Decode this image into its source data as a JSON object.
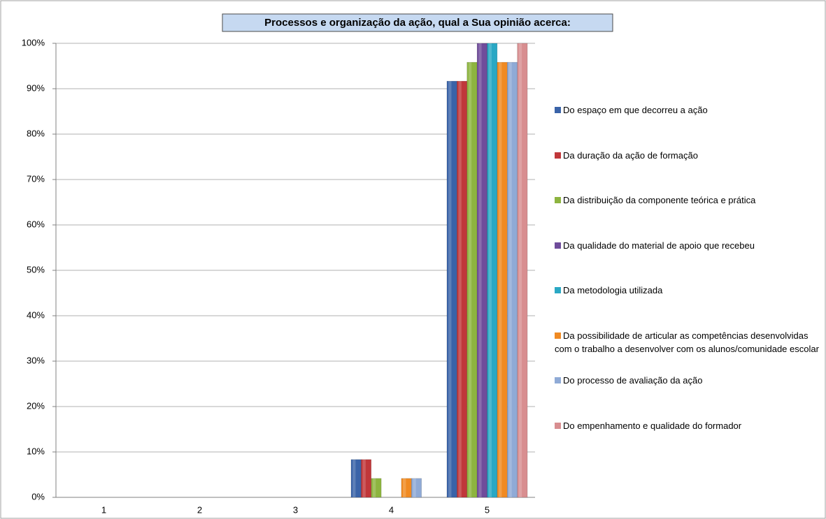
{
  "chart_data": {
    "type": "bar",
    "title": "Processos e organização da ação, qual a Sua opinião acerca:",
    "categories": [
      "1",
      "2",
      "3",
      "4",
      "5"
    ],
    "series": [
      {
        "name": "Do espaço em que decorreu a ação",
        "color": "#3a63a8",
        "values": [
          0,
          0,
          0,
          8.33,
          91.67
        ]
      },
      {
        "name": "Da duração da ação de formação",
        "color": "#c0373a",
        "values": [
          0,
          0,
          0,
          8.33,
          91.67
        ]
      },
      {
        "name": "Da distribuição da componente teórica e prática",
        "color": "#8db43f",
        "values": [
          0,
          0,
          0,
          4.17,
          95.83
        ]
      },
      {
        "name": "Da qualidade do material de apoio que recebeu",
        "color": "#6f4c9b",
        "values": [
          0,
          0,
          0,
          0,
          100
        ]
      },
      {
        "name": "Da metodologia utilizada",
        "color": "#2aa8c4",
        "values": [
          0,
          0,
          0,
          0,
          100
        ]
      },
      {
        "name": "Da possibilidade de articular as competências desenvolvidas com o trabalho a desenvolver com os alunos/comunidade escolar",
        "color": "#f08a22",
        "values": [
          0,
          0,
          0,
          4.17,
          95.83
        ]
      },
      {
        "name": "Do processo de avaliação da ação",
        "color": "#8faad6",
        "values": [
          0,
          0,
          0,
          4.17,
          95.83
        ]
      },
      {
        "name": "Do empenhamento e qualidade do formador",
        "color": "#d88e90",
        "values": [
          0,
          0,
          0,
          0,
          100
        ]
      }
    ],
    "ylim": [
      0,
      100
    ],
    "yticks": [
      {
        "value": 0,
        "label": "0%"
      },
      {
        "value": 10,
        "label": "10%"
      },
      {
        "value": 20,
        "label": "20%"
      },
      {
        "value": 30,
        "label": "30%"
      },
      {
        "value": 40,
        "label": "40%"
      },
      {
        "value": 50,
        "label": "50%"
      },
      {
        "value": 60,
        "label": "60%"
      },
      {
        "value": 70,
        "label": "70%"
      },
      {
        "value": 80,
        "label": "80%"
      },
      {
        "value": 90,
        "label": "90%"
      },
      {
        "value": 100,
        "label": "100%"
      }
    ],
    "grid": true,
    "legend": "right"
  }
}
